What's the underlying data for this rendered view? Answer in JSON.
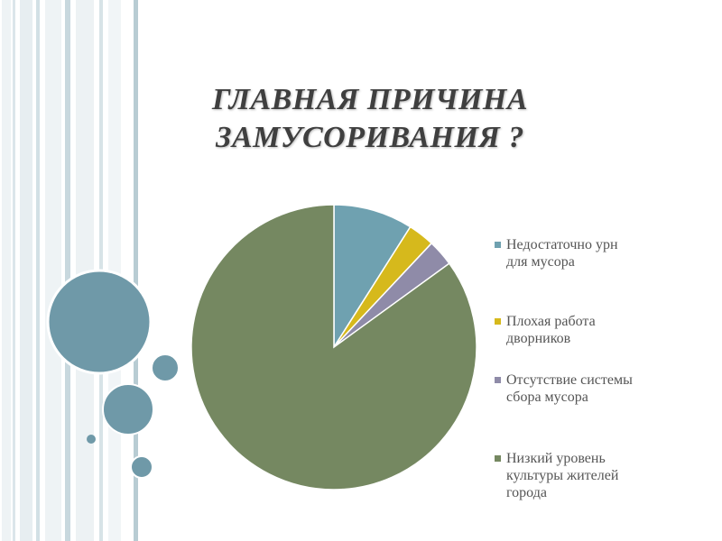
{
  "title": {
    "line1": "ГЛАВНАЯ ПРИЧИНА",
    "line2": "ЗАМУСОРИВАНИЯ ?"
  },
  "colors": {
    "stripe_dark": "#7d9fae",
    "stripe_light": "#e6eef1",
    "circle_fill": "#6f99a8",
    "circle_stroke": "#ffffff"
  },
  "chart_data": {
    "type": "pie",
    "title": "",
    "categories": [
      "Недостаточно урн для мусора",
      "Плохая работа дворников",
      "Отсутствие системы сбора мусора",
      "Низкий уровень культуры жителей города"
    ],
    "values": [
      9,
      3,
      3,
      85
    ],
    "colors": [
      "#6fa1b0",
      "#d6b91c",
      "#8f8ba8",
      "#758861"
    ],
    "legend_position": "right"
  }
}
